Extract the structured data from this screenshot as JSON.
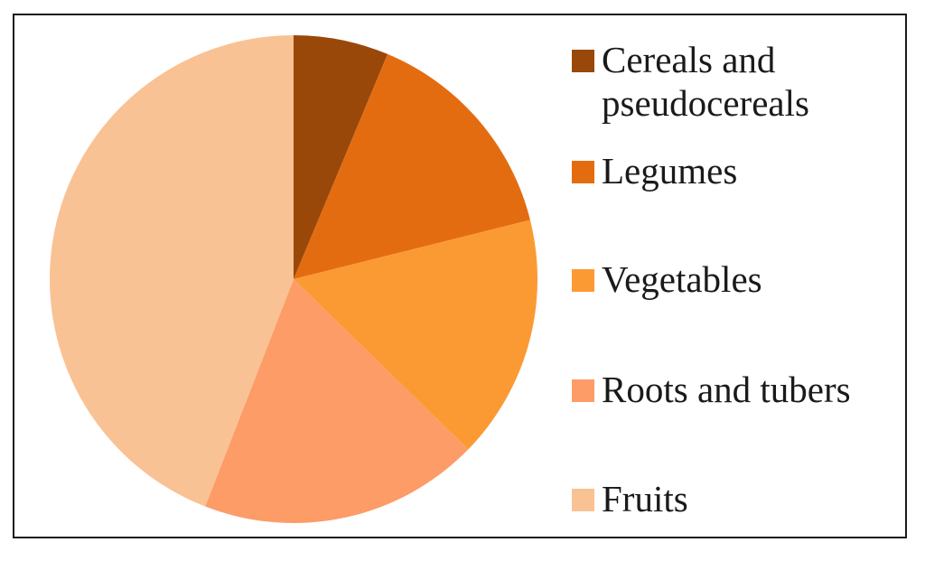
{
  "chart_data": {
    "type": "pie",
    "title": "",
    "start_angle_deg": 0,
    "direction": "clockwise",
    "slices": [
      {
        "label": "Cereals and pseudocereals",
        "value": 6.3,
        "color": "#99480a"
      },
      {
        "label": "Legumes",
        "value": 14.8,
        "color": "#e46c10"
      },
      {
        "label": "Vegetables",
        "value": 16.2,
        "color": "#fb9a33"
      },
      {
        "label": "Roots and tubers",
        "value": 18.6,
        "color": "#fd9c67"
      },
      {
        "label": "Fruits",
        "value": 44.1,
        "color": "#f9c294"
      }
    ],
    "legend": {
      "position": "right",
      "items": [
        {
          "label": "Cereals and\npseudocereals",
          "color": "#99480a"
        },
        {
          "label": "Legumes",
          "color": "#e46c10"
        },
        {
          "label": "Vegetables",
          "color": "#fb9a33"
        },
        {
          "label": "Roots and tubers",
          "color": "#fd9c67"
        },
        {
          "label": "Fruits",
          "color": "#f9c294"
        }
      ]
    }
  }
}
